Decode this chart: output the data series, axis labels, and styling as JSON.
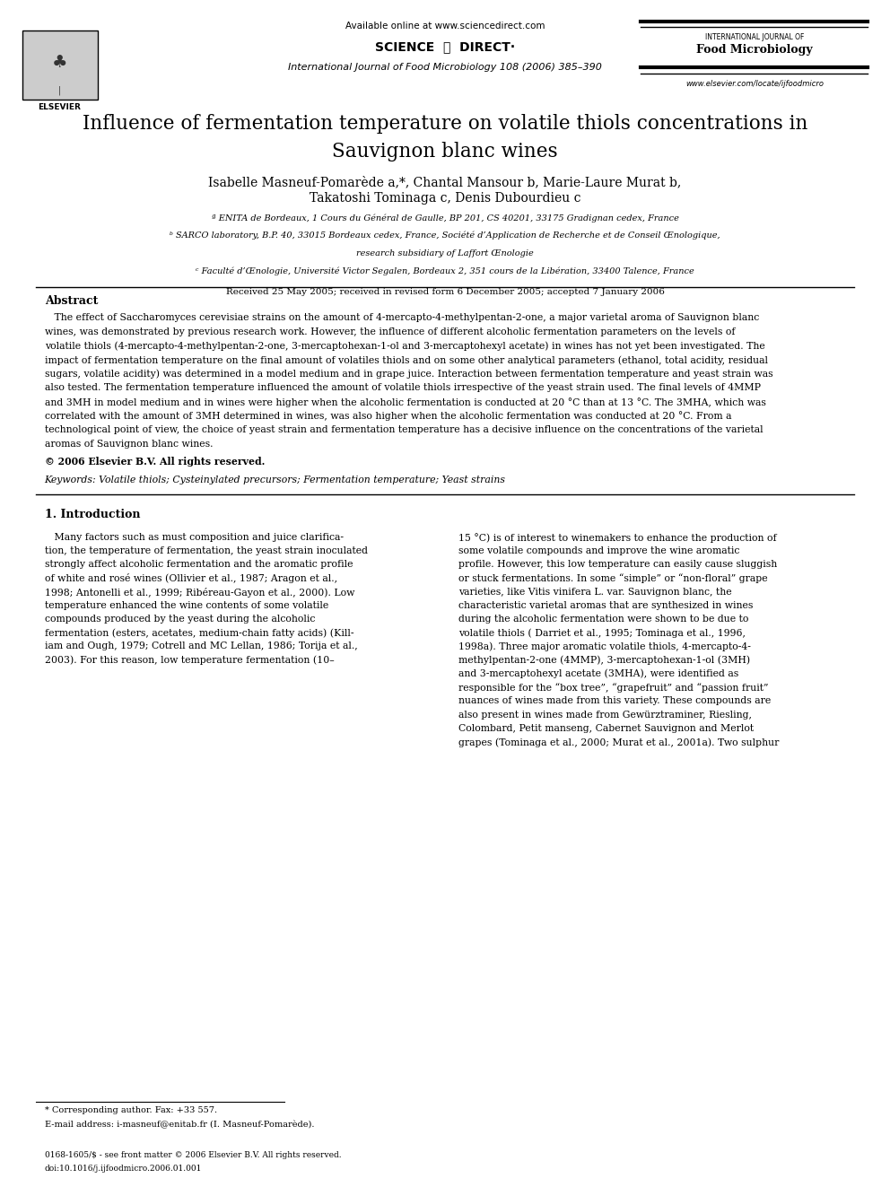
{
  "bg_color": "#ffffff",
  "page_width": 9.92,
  "page_height": 13.23,
  "header": {
    "available_online": "Available online at www.sciencedirect.com",
    "journal_line1": "International Journal of Food Microbiology 108 (2006) 385–390",
    "intl_journal_of": "INTERNATIONAL JOURNAL OF",
    "food_microbiology": "Food Microbiology",
    "website": "www.elsevier.com/locate/ijfoodmicro"
  },
  "title": "Influence of fermentation temperature on volatile thiols concentrations in\nSauvignon blanc wines",
  "authors_line1": "Isabelle Masneuf-Pomarède a,*, Chantal Mansour b, Marie-Laure Murat b,",
  "authors_line2": "Takatoshi Tominaga c, Denis Dubourdieu c",
  "affiliations": [
    "ª ENITA de Bordeaux, 1 Cours du Général de Gaulle, BP 201, CS 40201, 33175 Gradignan cedex, France",
    "ᵇ SARCO laboratory, B.P. 40, 33015 Bordeaux cedex, France, Société d’Application de Recherche et de Conseil Œnologique,",
    "research subsidiary of Laffort Œnologie",
    "ᶜ Faculté d’Œnologie, Université Victor Segalen, Bordeaux 2, 351 cours de la Libération, 33400 Talence, France"
  ],
  "received": "Received 25 May 2005; received in revised form 6 December 2005; accepted 7 January 2006",
  "abstract_title": "Abstract",
  "abstract_lines": [
    "   The effect of Saccharomyces cerevisiae strains on the amount of 4-mercapto-4-methylpentan-2-one, a major varietal aroma of Sauvignon blanc",
    "wines, was demonstrated by previous research work. However, the influence of different alcoholic fermentation parameters on the levels of",
    "volatile thiols (4-mercapto-4-methylpentan-2-one, 3-mercaptohexan-1-ol and 3-mercaptohexyl acetate) in wines has not yet been investigated. The",
    "impact of fermentation temperature on the final amount of volatiles thiols and on some other analytical parameters (ethanol, total acidity, residual",
    "sugars, volatile acidity) was determined in a model medium and in grape juice. Interaction between fermentation temperature and yeast strain was",
    "also tested. The fermentation temperature influenced the amount of volatile thiols irrespective of the yeast strain used. The final levels of 4MMP",
    "and 3MH in model medium and in wines were higher when the alcoholic fermentation is conducted at 20 °C than at 13 °C. The 3MHA, which was",
    "correlated with the amount of 3MH determined in wines, was also higher when the alcoholic fermentation was conducted at 20 °C. From a",
    "technological point of view, the choice of yeast strain and fermentation temperature has a decisive influence on the concentrations of the varietal",
    "aromas of Sauvignon blanc wines."
  ],
  "copyright": "© 2006 Elsevier B.V. All rights reserved.",
  "keywords": "Keywords: Volatile thiols; Cysteinylated precursors; Fermentation temperature; Yeast strains",
  "intro_title": "1. Introduction",
  "intro_col1_lines": [
    "   Many factors such as must composition and juice clarifica-",
    "tion, the temperature of fermentation, the yeast strain inoculated",
    "strongly affect alcoholic fermentation and the aromatic profile",
    "of white and rosé wines (Ollivier et al., 1987; Aragon et al.,",
    "1998; Antonelli et al., 1999; Ribéreau-Gayon et al., 2000). Low",
    "temperature enhanced the wine contents of some volatile",
    "compounds produced by the yeast during the alcoholic",
    "fermentation (esters, acetates, medium-chain fatty acids) (Kill-",
    "iam and Ough, 1979; Cotrell and MC Lellan, 1986; Torija et al.,",
    "2003). For this reason, low temperature fermentation (10–"
  ],
  "intro_col2_lines": [
    "15 °C) is of interest to winemakers to enhance the production of",
    "some volatile compounds and improve the wine aromatic",
    "profile. However, this low temperature can easily cause sluggish",
    "or stuck fermentations. In some “simple” or “non-floral” grape",
    "varieties, like Vitis vinifera L. var. Sauvignon blanc, the",
    "characteristic varietal aromas that are synthesized in wines",
    "during the alcoholic fermentation were shown to be due to",
    "volatile thiols ( Darriet et al., 1995; Tominaga et al., 1996,",
    "1998a). Three major aromatic volatile thiols, 4-mercapto-4-",
    "methylpentan-2-one (4MMP), 3-mercaptohexan-1-ol (3MH)",
    "and 3-mercaptohexyl acetate (3MHA), were identified as",
    "responsible for the “box tree”, “grapefruit” and “passion fruit”",
    "nuances of wines made from this variety. These compounds are",
    "also present in wines made from Gewürztraminer, Riesling,",
    "Colombard, Petit manseng, Cabernet Sauvignon and Merlot",
    "grapes (Tominaga et al., 2000; Murat et al., 2001a). Two sulphur"
  ],
  "footnote_line1": "* Corresponding author. Fax: +33 557.",
  "footnote_line2": "E-mail address: i-masneuf@enitab.fr (I. Masneuf-Pomarède).",
  "footer_line1": "0168-1605/$ - see front matter © 2006 Elsevier B.V. All rights reserved.",
  "footer_line2": "doi:10.1016/j.ijfoodmicro.2006.01.001"
}
